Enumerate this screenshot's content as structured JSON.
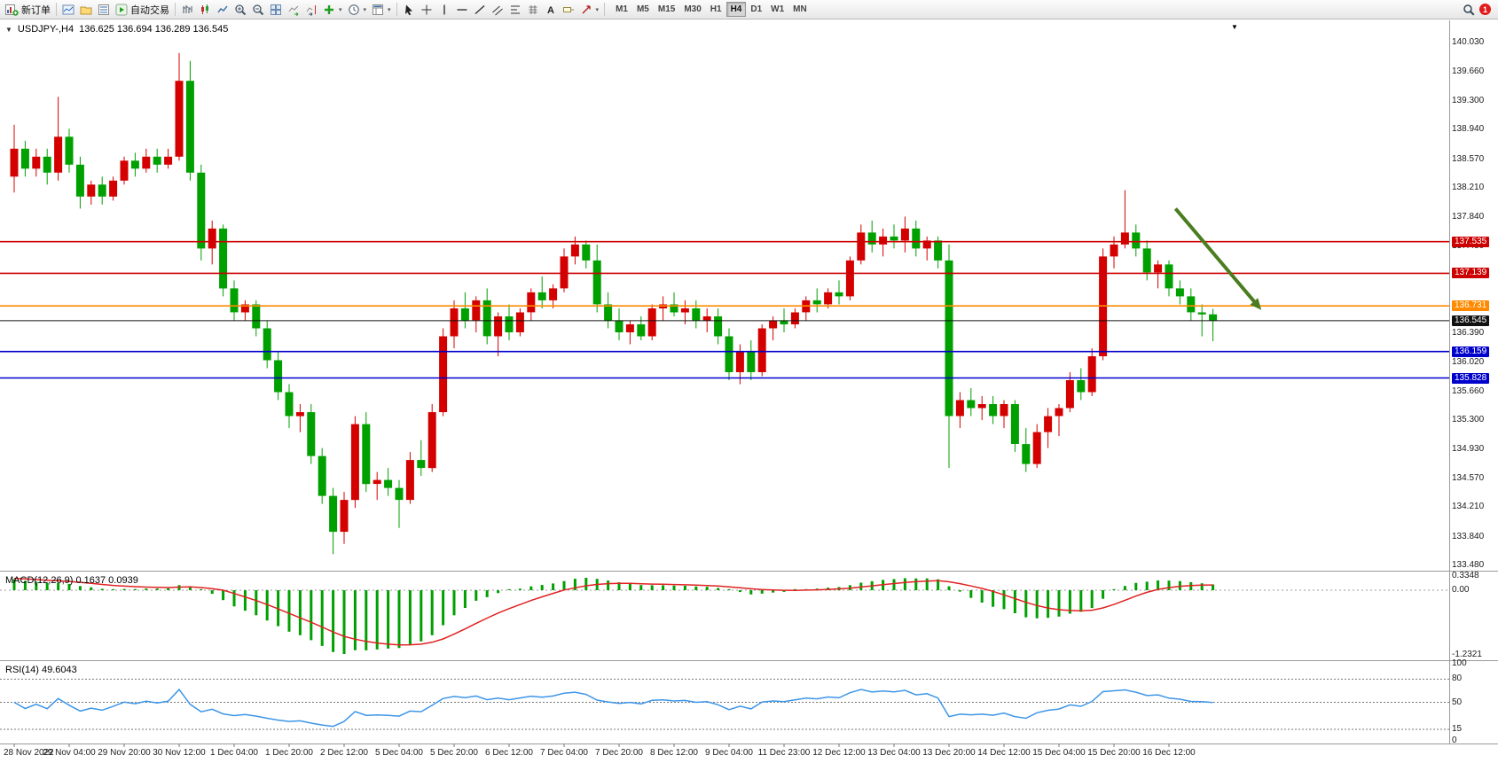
{
  "toolbar": {
    "new_order_label": "新订单",
    "auto_trading_label": "自动交易",
    "timeframes": [
      "M1",
      "M5",
      "M15",
      "M30",
      "H1",
      "H4",
      "D1",
      "W1",
      "MN"
    ],
    "active_timeframe": "H4",
    "notification_badge": "1"
  },
  "chart": {
    "symbol_label": "USDJPY-,H4",
    "ohlc_label": "136.625 136.694 136.289 136.545",
    "price_axis": {
      "ticks": [
        "140.030",
        "139.660",
        "139.300",
        "138.940",
        "138.570",
        "138.210",
        "137.840",
        "137.480",
        "136.390",
        "136.020",
        "135.660",
        "135.300",
        "134.930",
        "134.570",
        "134.210",
        "133.840",
        "133.480"
      ]
    },
    "time_axis": [
      "28 Nov 2022",
      "29 Nov 04:00",
      "29 Nov 20:00",
      "30 Nov 12:00",
      "1 Dec 04:00",
      "1 Dec 20:00",
      "2 Dec 12:00",
      "5 Dec 04:00",
      "5 Dec 20:00",
      "6 Dec 12:00",
      "7 Dec 04:00",
      "7 Dec 20:00",
      "8 Dec 12:00",
      "9 Dec 04:00",
      "11 Dec 23:00",
      "12 Dec 12:00",
      "13 Dec 04:00",
      "13 Dec 20:00",
      "14 Dec 12:00",
      "15 Dec 04:00",
      "15 Dec 20:00",
      "16 Dec 12:00"
    ]
  },
  "macd": {
    "header": "MACD(12,26,9) 0.1637 0.0939",
    "axis": [
      "0.3348",
      "0.00",
      "-1.2321"
    ]
  },
  "rsi": {
    "header": "RSI(14) 49.6043",
    "axis": [
      "100",
      "80",
      "50",
      "15",
      "0"
    ],
    "levels": [
      80,
      50,
      15
    ]
  },
  "chart_data": {
    "type": "candlestick",
    "symbol": "USDJPY-",
    "timeframe": "H4",
    "current_bar_ohlc": {
      "open": 136.625,
      "high": 136.694,
      "low": 136.289,
      "close": 136.545
    },
    "price_range": [
      133.48,
      140.03
    ],
    "colors": {
      "up": "#d40000",
      "down": "#00a000",
      "macd_hist": "#00a000",
      "macd_signal": "#e02222",
      "rsi": "#3d96e8"
    },
    "candles": [
      [
        138.35,
        139.0,
        138.15,
        138.7
      ],
      [
        138.7,
        138.8,
        138.35,
        138.45
      ],
      [
        138.45,
        138.7,
        138.35,
        138.6
      ],
      [
        138.6,
        138.7,
        138.25,
        138.4
      ],
      [
        138.4,
        139.35,
        138.3,
        138.85
      ],
      [
        138.85,
        138.95,
        138.4,
        138.5
      ],
      [
        138.5,
        138.6,
        137.95,
        138.1
      ],
      [
        138.1,
        138.3,
        138.0,
        138.25
      ],
      [
        138.25,
        138.35,
        138.0,
        138.1
      ],
      [
        138.1,
        138.35,
        138.05,
        138.3
      ],
      [
        138.3,
        138.6,
        138.25,
        138.55
      ],
      [
        138.55,
        138.65,
        138.35,
        138.45
      ],
      [
        138.45,
        138.7,
        138.4,
        138.6
      ],
      [
        138.6,
        138.7,
        138.4,
        138.5
      ],
      [
        138.5,
        138.7,
        138.45,
        138.6
      ],
      [
        138.6,
        139.9,
        138.55,
        139.55
      ],
      [
        139.55,
        139.8,
        138.3,
        138.4
      ],
      [
        138.4,
        138.5,
        137.3,
        137.45
      ],
      [
        137.45,
        137.8,
        137.25,
        137.7
      ],
      [
        137.7,
        137.75,
        136.85,
        136.95
      ],
      [
        136.95,
        137.05,
        136.55,
        136.65
      ],
      [
        136.65,
        136.8,
        136.55,
        136.75
      ],
      [
        136.75,
        136.8,
        136.35,
        136.45
      ],
      [
        136.45,
        136.55,
        135.95,
        136.05
      ],
      [
        136.05,
        136.15,
        135.55,
        135.65
      ],
      [
        135.65,
        135.75,
        135.2,
        135.35
      ],
      [
        135.35,
        135.5,
        135.15,
        135.4
      ],
      [
        135.4,
        135.5,
        134.75,
        134.85
      ],
      [
        134.85,
        134.95,
        134.25,
        134.35
      ],
      [
        134.35,
        134.45,
        133.62,
        133.9
      ],
      [
        133.9,
        134.4,
        133.75,
        134.3
      ],
      [
        134.3,
        135.35,
        134.2,
        135.25
      ],
      [
        135.25,
        135.4,
        134.4,
        134.5
      ],
      [
        134.5,
        134.65,
        134.3,
        134.55
      ],
      [
        134.55,
        134.7,
        134.35,
        134.45
      ],
      [
        134.45,
        134.55,
        133.95,
        134.3
      ],
      [
        134.3,
        134.9,
        134.25,
        134.8
      ],
      [
        134.8,
        135.05,
        134.6,
        134.7
      ],
      [
        134.7,
        135.5,
        134.65,
        135.4
      ],
      [
        135.4,
        136.45,
        135.35,
        136.35
      ],
      [
        136.35,
        136.8,
        136.2,
        136.7
      ],
      [
        136.7,
        136.9,
        136.45,
        136.55
      ],
      [
        136.55,
        136.85,
        136.4,
        136.8
      ],
      [
        136.8,
        136.95,
        136.25,
        136.35
      ],
      [
        136.35,
        136.65,
        136.1,
        136.6
      ],
      [
        136.6,
        136.75,
        136.3,
        136.4
      ],
      [
        136.4,
        136.7,
        136.35,
        136.65
      ],
      [
        136.65,
        136.95,
        136.55,
        136.9
      ],
      [
        136.9,
        137.1,
        136.7,
        136.8
      ],
      [
        136.8,
        137.0,
        136.7,
        136.95
      ],
      [
        136.95,
        137.45,
        136.9,
        137.35
      ],
      [
        137.35,
        137.6,
        137.25,
        137.5
      ],
      [
        137.5,
        137.55,
        137.2,
        137.3
      ],
      [
        137.3,
        137.5,
        136.65,
        136.75
      ],
      [
        136.75,
        136.9,
        136.45,
        136.55
      ],
      [
        136.55,
        136.7,
        136.3,
        136.4
      ],
      [
        136.4,
        136.55,
        136.25,
        136.5
      ],
      [
        136.5,
        136.6,
        136.3,
        136.35
      ],
      [
        136.35,
        136.75,
        136.3,
        136.7
      ],
      [
        136.7,
        136.85,
        136.55,
        136.75
      ],
      [
        136.75,
        136.9,
        136.6,
        136.65
      ],
      [
        136.65,
        136.8,
        136.5,
        136.7
      ],
      [
        136.7,
        136.8,
        136.45,
        136.55
      ],
      [
        136.55,
        136.7,
        136.4,
        136.6
      ],
      [
        136.6,
        136.7,
        136.25,
        136.35
      ],
      [
        136.35,
        136.45,
        135.8,
        135.9
      ],
      [
        135.9,
        136.25,
        135.75,
        136.15
      ],
      [
        136.15,
        136.3,
        135.8,
        135.9
      ],
      [
        135.9,
        136.5,
        135.85,
        136.45
      ],
      [
        136.45,
        136.6,
        136.3,
        136.55
      ],
      [
        136.55,
        136.7,
        136.4,
        136.5
      ],
      [
        136.5,
        136.7,
        136.45,
        136.65
      ],
      [
        136.65,
        136.85,
        136.55,
        136.8
      ],
      [
        136.8,
        136.95,
        136.65,
        136.75
      ],
      [
        136.75,
        136.95,
        136.7,
        136.9
      ],
      [
        136.9,
        137.05,
        136.75,
        136.85
      ],
      [
        136.85,
        137.35,
        136.8,
        137.3
      ],
      [
        137.3,
        137.75,
        137.25,
        137.65
      ],
      [
        137.65,
        137.8,
        137.4,
        137.5
      ],
      [
        137.5,
        137.7,
        137.35,
        137.6
      ],
      [
        137.6,
        137.75,
        137.45,
        137.55
      ],
      [
        137.55,
        137.85,
        137.4,
        137.7
      ],
      [
        137.7,
        137.8,
        137.35,
        137.45
      ],
      [
        137.45,
        137.6,
        137.3,
        137.55
      ],
      [
        137.55,
        137.6,
        137.2,
        137.3
      ],
      [
        137.3,
        137.5,
        134.7,
        135.35
      ],
      [
        135.35,
        135.65,
        135.2,
        135.55
      ],
      [
        135.55,
        135.7,
        135.35,
        135.45
      ],
      [
        135.45,
        135.6,
        135.3,
        135.5
      ],
      [
        135.5,
        135.6,
        135.25,
        135.35
      ],
      [
        135.35,
        135.55,
        135.2,
        135.5
      ],
      [
        135.5,
        135.55,
        134.9,
        135.0
      ],
      [
        135.0,
        135.2,
        134.65,
        134.75
      ],
      [
        134.75,
        135.25,
        134.7,
        135.15
      ],
      [
        135.15,
        135.45,
        134.95,
        135.35
      ],
      [
        135.35,
        135.5,
        135.1,
        135.45
      ],
      [
        135.45,
        135.9,
        135.4,
        135.8
      ],
      [
        135.8,
        135.95,
        135.55,
        135.65
      ],
      [
        135.65,
        136.2,
        135.6,
        136.1
      ],
      [
        136.1,
        137.45,
        136.05,
        137.35
      ],
      [
        137.35,
        137.6,
        137.2,
        137.5
      ],
      [
        137.5,
        138.18,
        137.45,
        137.65
      ],
      [
        137.65,
        137.75,
        137.35,
        137.45
      ],
      [
        137.45,
        137.55,
        137.05,
        137.15
      ],
      [
        137.15,
        137.3,
        136.95,
        137.25
      ],
      [
        137.25,
        137.3,
        136.85,
        136.95
      ],
      [
        136.95,
        137.05,
        136.75,
        136.85
      ],
      [
        136.85,
        136.95,
        136.55,
        136.65
      ],
      [
        136.65,
        136.75,
        136.35,
        136.625
      ],
      [
        136.625,
        136.694,
        136.289,
        136.545
      ]
    ],
    "hlines": [
      {
        "price": 137.535,
        "label": "137.535",
        "color": "#cc0000"
      },
      {
        "price": 137.139,
        "label": "137.139",
        "color": "#cc0000"
      },
      {
        "price": 136.731,
        "label": "136.731",
        "color": "#ff8a00"
      },
      {
        "price": 136.545,
        "label": "136.545",
        "color": "#111111",
        "current": true
      },
      {
        "price": 136.159,
        "label": "136.159",
        "color": "#0000cc"
      },
      {
        "price": 135.828,
        "label": "135.828",
        "color": "#0000cc"
      }
    ],
    "arrow": {
      "from": {
        "bar": 105.6,
        "price": 137.95
      },
      "to": {
        "bar": 113.4,
        "price": 136.68
      },
      "color": "#4a7d1f"
    },
    "indicators": [
      {
        "name": "MACD",
        "params": [
          12,
          26,
          9
        ],
        "values": [
          0.1637,
          0.0939
        ],
        "scale_max": 0.3348,
        "scale_min": -1.2321
      },
      {
        "name": "RSI",
        "params": [
          14
        ],
        "value": 49.6043,
        "levels": [
          80,
          50,
          15
        ]
      }
    ]
  }
}
